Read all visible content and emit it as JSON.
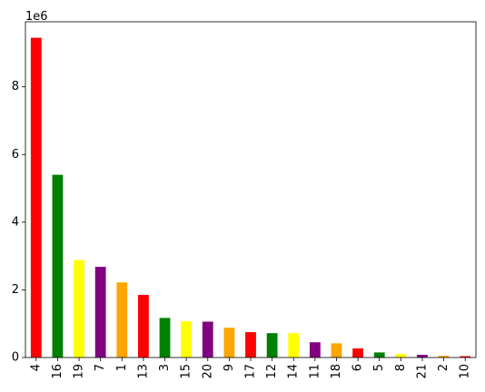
{
  "chart_data": {
    "type": "bar",
    "categories": [
      "4",
      "16",
      "19",
      "7",
      "1",
      "13",
      "3",
      "15",
      "20",
      "9",
      "17",
      "12",
      "14",
      "11",
      "18",
      "6",
      "5",
      "8",
      "21",
      "2",
      "10"
    ],
    "values": [
      9450000,
      5400000,
      2880000,
      2680000,
      2220000,
      1850000,
      1170000,
      1070000,
      1060000,
      880000,
      750000,
      720000,
      720000,
      450000,
      420000,
      270000,
      150000,
      100000,
      80000,
      50000,
      40000
    ],
    "bar_colors": [
      "#ff0000",
      "#008000",
      "#ffff00",
      "#800080",
      "#ffa500"
    ],
    "ylim": [
      0,
      9922500
    ],
    "yticks": [
      0,
      2,
      4,
      6,
      8
    ],
    "ytick_labels": [
      "0",
      "2",
      "4",
      "6",
      "8"
    ],
    "ytick_multiplier": 1000000,
    "offset_label": "1e6",
    "xtick_rotation": 90,
    "title": "",
    "xlabel": "",
    "ylabel": "",
    "grid": false
  }
}
